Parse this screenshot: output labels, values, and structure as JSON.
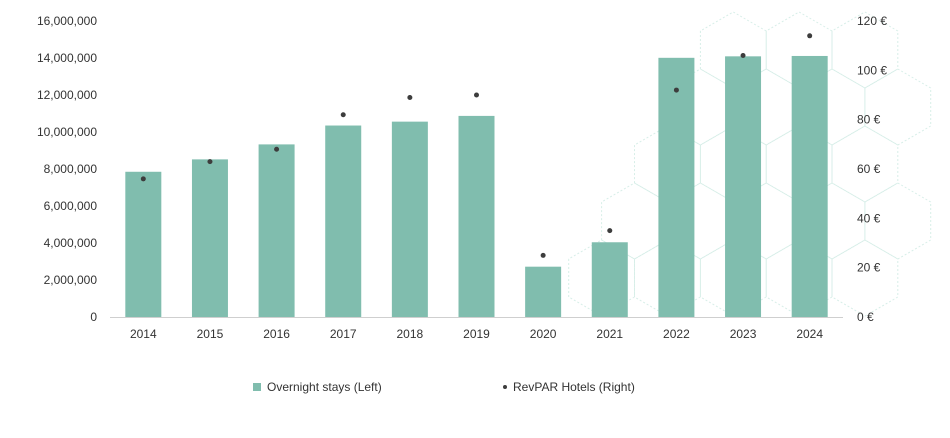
{
  "chart_data": {
    "type": "bar",
    "categories": [
      "2014",
      "2015",
      "2016",
      "2017",
      "2018",
      "2019",
      "2020",
      "2021",
      "2022",
      "2023",
      "2024"
    ],
    "series": [
      {
        "name": "Overnight stays (Left)",
        "type": "bar",
        "axis": "left",
        "values": [
          7850000,
          8520000,
          9330000,
          10350000,
          10560000,
          10870000,
          2720000,
          4040000,
          14010000,
          14090000,
          14110000
        ]
      },
      {
        "name": "RevPAR Hotels (Right)",
        "type": "scatter",
        "axis": "right",
        "values": [
          56,
          63,
          68,
          82,
          89,
          90,
          25,
          35,
          92,
          106,
          114
        ]
      }
    ],
    "left_axis": {
      "ylim": [
        0,
        16000000
      ],
      "ticks": [
        0,
        2000000,
        4000000,
        6000000,
        8000000,
        10000000,
        12000000,
        14000000,
        16000000
      ],
      "tick_labels": [
        "0",
        "2,000,000",
        "4,000,000",
        "6,000,000",
        "8,000,000",
        "10,000,000",
        "12,000,000",
        "14,000,000",
        "16,000,000"
      ]
    },
    "right_axis": {
      "ylim": [
        0,
        120
      ],
      "ticks": [
        0,
        20,
        40,
        60,
        80,
        100,
        120
      ],
      "tick_labels": [
        "0 €",
        "20 €",
        "40 €",
        "60 €",
        "80 €",
        "100 €",
        "120 €"
      ]
    },
    "grid": false,
    "legend_position": "bottom-center",
    "colors": {
      "bar": "#80bdae",
      "dot": "#3d3d3d",
      "text": "#333333",
      "axis": "#cfcfcf",
      "pattern": "#d7eee8"
    }
  },
  "legend": {
    "bar_label": "Overnight stays (Left)",
    "dot_label": "RevPAR Hotels (Right)"
  }
}
